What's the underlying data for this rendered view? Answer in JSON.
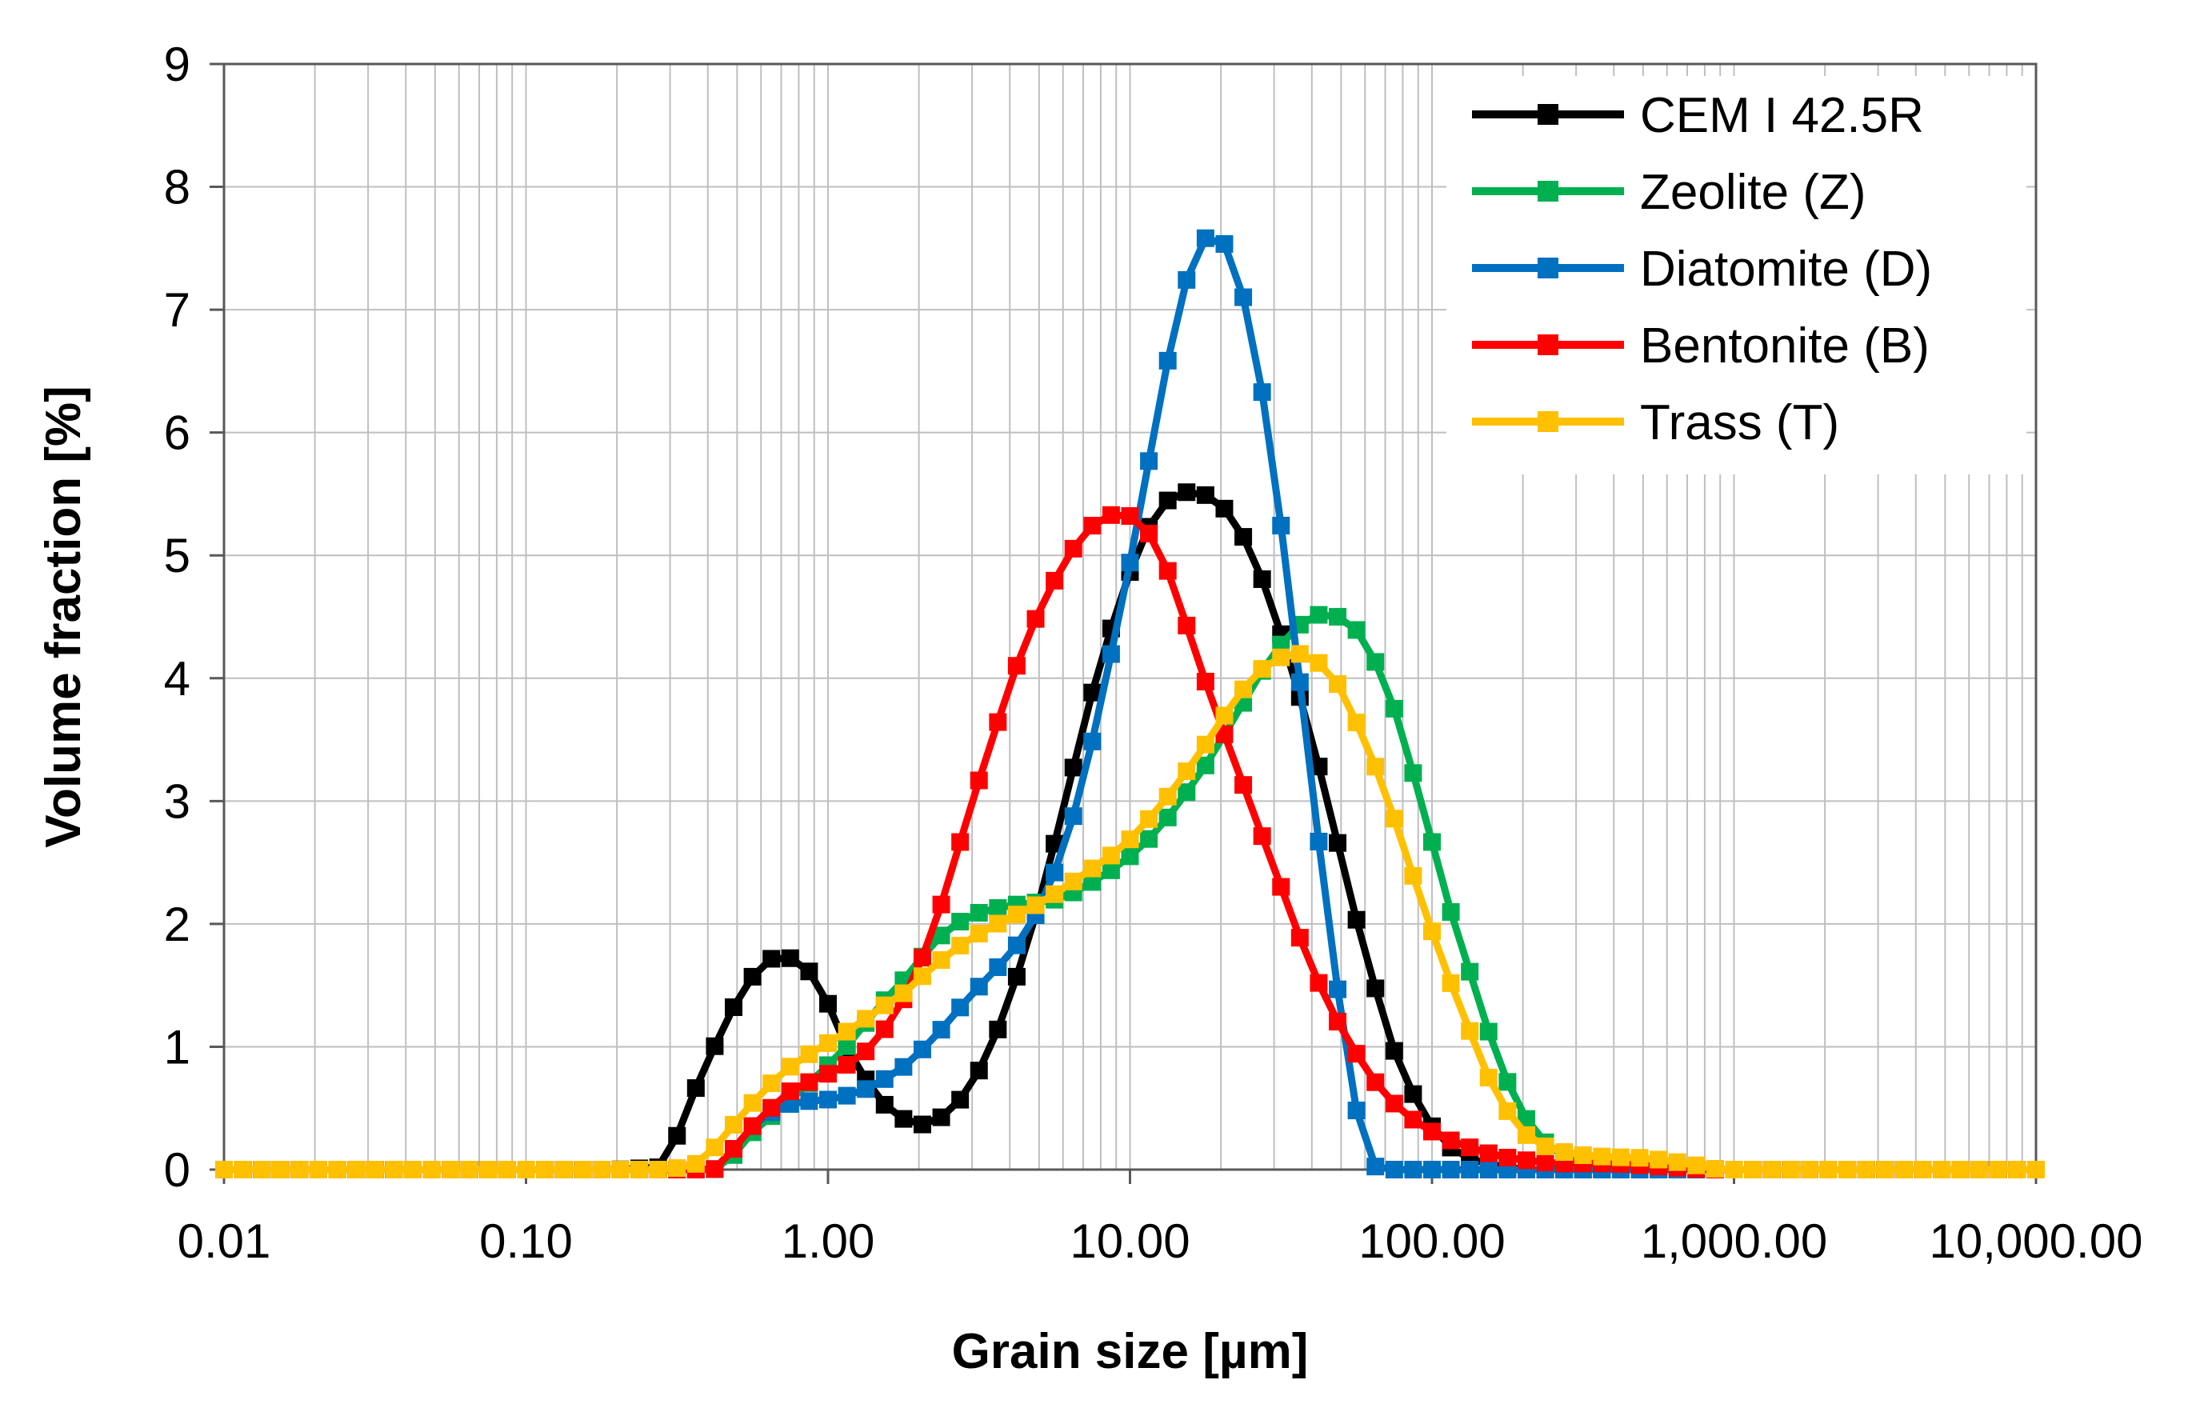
{
  "chart_data": {
    "type": "line",
    "title": "",
    "xlabel": "Grain size [µm]",
    "ylabel": "Volume fraction [%]",
    "x_scale": "log",
    "xlim": [
      0.01,
      10000
    ],
    "ylim": [
      0,
      9
    ],
    "grid": true,
    "legend_position": "top-right",
    "x_tick_labels": [
      "0.01",
      "0.10",
      "1.00",
      "10.00",
      "100.00",
      "1,000.00",
      "10,000.00"
    ],
    "y_tick_labels": [
      "0",
      "1",
      "2",
      "3",
      "4",
      "5",
      "6",
      "7",
      "8",
      "9"
    ],
    "series": [
      {
        "name": "CEM I 42.5R",
        "color": "#000000",
        "points": [
          [
            0.01,
            0
          ],
          [
            0.2,
            0
          ],
          [
            0.28,
            0.02
          ],
          [
            0.32,
            0.3
          ],
          [
            0.37,
            0.7
          ],
          [
            0.43,
            1.05
          ],
          [
            0.5,
            1.38
          ],
          [
            0.58,
            1.62
          ],
          [
            0.66,
            1.73
          ],
          [
            0.76,
            1.72
          ],
          [
            0.88,
            1.6
          ],
          [
            1.0,
            1.35
          ],
          [
            1.15,
            1.0
          ],
          [
            1.32,
            0.75
          ],
          [
            1.5,
            0.55
          ],
          [
            1.75,
            0.42
          ],
          [
            2.0,
            0.36
          ],
          [
            2.3,
            0.4
          ],
          [
            2.65,
            0.52
          ],
          [
            3.05,
            0.73
          ],
          [
            3.5,
            1.02
          ],
          [
            4.0,
            1.4
          ],
          [
            4.6,
            1.85
          ],
          [
            5.3,
            2.4
          ],
          [
            6.1,
            3.0
          ],
          [
            7.0,
            3.6
          ],
          [
            8.0,
            4.15
          ],
          [
            9.2,
            4.6
          ],
          [
            10.6,
            5.05
          ],
          [
            12.2,
            5.35
          ],
          [
            14.0,
            5.5
          ],
          [
            16.0,
            5.52
          ],
          [
            18.5,
            5.48
          ],
          [
            21.2,
            5.35
          ],
          [
            24.4,
            5.1
          ],
          [
            28.0,
            4.75
          ],
          [
            32.2,
            4.3
          ],
          [
            37.0,
            3.8
          ],
          [
            42.5,
            3.25
          ],
          [
            48.8,
            2.65
          ],
          [
            56.0,
            2.05
          ],
          [
            64.5,
            1.5
          ],
          [
            74.0,
            1.0
          ],
          [
            85.0,
            0.65
          ],
          [
            98.0,
            0.38
          ],
          [
            112,
            0.2
          ],
          [
            130,
            0.1
          ],
          [
            150,
            0.05
          ],
          [
            175,
            0.02
          ],
          [
            200,
            0
          ],
          [
            10000,
            0
          ]
        ]
      },
      {
        "name": "Zeolite (Z)",
        "color": "#00B050",
        "points": [
          [
            0.01,
            0
          ],
          [
            0.42,
            0
          ],
          [
            0.48,
            0.1
          ],
          [
            0.56,
            0.3
          ],
          [
            0.66,
            0.45
          ],
          [
            0.76,
            0.58
          ],
          [
            0.88,
            0.72
          ],
          [
            1.0,
            0.85
          ],
          [
            1.15,
            1.0
          ],
          [
            1.32,
            1.18
          ],
          [
            1.5,
            1.35
          ],
          [
            1.75,
            1.52
          ],
          [
            2.0,
            1.7
          ],
          [
            2.3,
            1.88
          ],
          [
            2.65,
            2.0
          ],
          [
            3.05,
            2.08
          ],
          [
            3.5,
            2.12
          ],
          [
            4.0,
            2.15
          ],
          [
            4.6,
            2.17
          ],
          [
            5.3,
            2.18
          ],
          [
            6.1,
            2.22
          ],
          [
            7.0,
            2.3
          ],
          [
            8.0,
            2.38
          ],
          [
            9.2,
            2.48
          ],
          [
            10.6,
            2.6
          ],
          [
            12.2,
            2.75
          ],
          [
            14.0,
            2.93
          ],
          [
            16.0,
            3.13
          ],
          [
            18.5,
            3.35
          ],
          [
            21.2,
            3.6
          ],
          [
            24.4,
            3.85
          ],
          [
            28.0,
            4.1
          ],
          [
            32.2,
            4.3
          ],
          [
            37.0,
            4.45
          ],
          [
            42.5,
            4.52
          ],
          [
            48.8,
            4.5
          ],
          [
            56.0,
            4.4
          ],
          [
            64.5,
            4.15
          ],
          [
            74.0,
            3.8
          ],
          [
            85.0,
            3.3
          ],
          [
            98.0,
            2.75
          ],
          [
            112,
            2.2
          ],
          [
            130,
            1.7
          ],
          [
            150,
            1.2
          ],
          [
            175,
            0.75
          ],
          [
            200,
            0.45
          ],
          [
            230,
            0.25
          ],
          [
            265,
            0.12
          ],
          [
            305,
            0.05
          ],
          [
            350,
            0.02
          ],
          [
            400,
            0
          ],
          [
            10000,
            0
          ]
        ]
      },
      {
        "name": "Diatomite (D)",
        "color": "#0070C0",
        "points": [
          [
            0.01,
            0
          ],
          [
            0.42,
            0
          ],
          [
            0.48,
            0.15
          ],
          [
            0.56,
            0.35
          ],
          [
            0.66,
            0.48
          ],
          [
            0.76,
            0.54
          ],
          [
            0.88,
            0.56
          ],
          [
            1.0,
            0.57
          ],
          [
            1.15,
            0.6
          ],
          [
            1.32,
            0.65
          ],
          [
            1.5,
            0.72
          ],
          [
            1.75,
            0.82
          ],
          [
            2.0,
            0.95
          ],
          [
            2.3,
            1.1
          ],
          [
            2.65,
            1.28
          ],
          [
            3.05,
            1.45
          ],
          [
            3.5,
            1.6
          ],
          [
            4.0,
            1.75
          ],
          [
            4.6,
            1.95
          ],
          [
            5.3,
            2.25
          ],
          [
            6.1,
            2.65
          ],
          [
            7.0,
            3.15
          ],
          [
            8.0,
            3.8
          ],
          [
            9.2,
            4.5
          ],
          [
            10.6,
            5.25
          ],
          [
            12.2,
            6.1
          ],
          [
            14.0,
            6.85
          ],
          [
            16.0,
            7.4
          ],
          [
            18.5,
            7.65
          ],
          [
            21.2,
            7.5
          ],
          [
            24.4,
            7.0
          ],
          [
            28.0,
            6.2
          ],
          [
            32.2,
            5.1
          ],
          [
            37.0,
            3.85
          ],
          [
            42.5,
            2.6
          ],
          [
            48.8,
            1.45
          ],
          [
            56.0,
            0.5
          ],
          [
            62,
            0.05
          ],
          [
            68,
            0
          ],
          [
            10000,
            0
          ]
        ]
      },
      {
        "name": "Bentonite (B)",
        "color": "#FF0000",
        "points": [
          [
            0.01,
            0
          ],
          [
            0.42,
            0
          ],
          [
            0.48,
            0.15
          ],
          [
            0.56,
            0.35
          ],
          [
            0.66,
            0.52
          ],
          [
            0.76,
            0.65
          ],
          [
            0.88,
            0.72
          ],
          [
            1.0,
            0.78
          ],
          [
            1.15,
            0.85
          ],
          [
            1.32,
            0.95
          ],
          [
            1.5,
            1.1
          ],
          [
            1.75,
            1.35
          ],
          [
            2.0,
            1.65
          ],
          [
            2.3,
            2.05
          ],
          [
            2.65,
            2.55
          ],
          [
            3.05,
            3.05
          ],
          [
            3.5,
            3.5
          ],
          [
            4.0,
            3.95
          ],
          [
            4.6,
            4.35
          ],
          [
            5.3,
            4.68
          ],
          [
            6.1,
            4.95
          ],
          [
            7.0,
            5.18
          ],
          [
            8.0,
            5.3
          ],
          [
            9.2,
            5.35
          ],
          [
            10.6,
            5.3
          ],
          [
            12.2,
            5.1
          ],
          [
            14.0,
            4.75
          ],
          [
            16.0,
            4.3
          ],
          [
            18.5,
            3.85
          ],
          [
            21.2,
            3.45
          ],
          [
            24.4,
            3.05
          ],
          [
            28.0,
            2.65
          ],
          [
            32.2,
            2.25
          ],
          [
            37.0,
            1.85
          ],
          [
            42.5,
            1.5
          ],
          [
            48.8,
            1.2
          ],
          [
            56.0,
            0.95
          ],
          [
            64.5,
            0.72
          ],
          [
            74.0,
            0.55
          ],
          [
            85.0,
            0.42
          ],
          [
            98.0,
            0.32
          ],
          [
            112,
            0.25
          ],
          [
            130,
            0.19
          ],
          [
            150,
            0.14
          ],
          [
            175,
            0.1
          ],
          [
            200,
            0.08
          ],
          [
            230,
            0.06
          ],
          [
            265,
            0.05
          ],
          [
            305,
            0.05
          ],
          [
            350,
            0.05
          ],
          [
            400,
            0.05
          ],
          [
            460,
            0.04
          ],
          [
            530,
            0.03
          ],
          [
            610,
            0.02
          ],
          [
            700,
            0.01
          ],
          [
            800,
            0
          ],
          [
            10000,
            0
          ]
        ]
      },
      {
        "name": "Trass (T)",
        "color": "#FFC000",
        "points": [
          [
            0.01,
            0
          ],
          [
            0.3,
            0
          ],
          [
            0.37,
            0.05
          ],
          [
            0.43,
            0.2
          ],
          [
            0.5,
            0.4
          ],
          [
            0.58,
            0.58
          ],
          [
            0.66,
            0.72
          ],
          [
            0.76,
            0.85
          ],
          [
            0.88,
            0.95
          ],
          [
            1.0,
            1.03
          ],
          [
            1.15,
            1.12
          ],
          [
            1.32,
            1.22
          ],
          [
            1.5,
            1.32
          ],
          [
            1.75,
            1.42
          ],
          [
            2.0,
            1.55
          ],
          [
            2.3,
            1.68
          ],
          [
            2.65,
            1.8
          ],
          [
            3.05,
            1.9
          ],
          [
            3.5,
            1.98
          ],
          [
            4.0,
            2.05
          ],
          [
            4.6,
            2.12
          ],
          [
            5.3,
            2.2
          ],
          [
            6.1,
            2.3
          ],
          [
            7.0,
            2.4
          ],
          [
            8.0,
            2.5
          ],
          [
            9.2,
            2.6
          ],
          [
            10.6,
            2.75
          ],
          [
            12.2,
            2.92
          ],
          [
            14.0,
            3.1
          ],
          [
            16.0,
            3.3
          ],
          [
            18.5,
            3.52
          ],
          [
            21.2,
            3.75
          ],
          [
            24.4,
            3.95
          ],
          [
            28.0,
            4.1
          ],
          [
            32.2,
            4.18
          ],
          [
            37.0,
            4.2
          ],
          [
            42.5,
            4.12
          ],
          [
            48.8,
            3.95
          ],
          [
            56.0,
            3.65
          ],
          [
            64.5,
            3.3
          ],
          [
            74.0,
            2.9
          ],
          [
            85.0,
            2.45
          ],
          [
            98.0,
            2.0
          ],
          [
            112,
            1.6
          ],
          [
            130,
            1.2
          ],
          [
            150,
            0.8
          ],
          [
            175,
            0.5
          ],
          [
            200,
            0.3
          ],
          [
            230,
            0.2
          ],
          [
            265,
            0.15
          ],
          [
            305,
            0.12
          ],
          [
            350,
            0.11
          ],
          [
            400,
            0.1
          ],
          [
            460,
            0.1
          ],
          [
            530,
            0.09
          ],
          [
            610,
            0.07
          ],
          [
            700,
            0.05
          ],
          [
            800,
            0.02
          ],
          [
            900,
            0
          ],
          [
            10000,
            0
          ]
        ]
      }
    ]
  }
}
